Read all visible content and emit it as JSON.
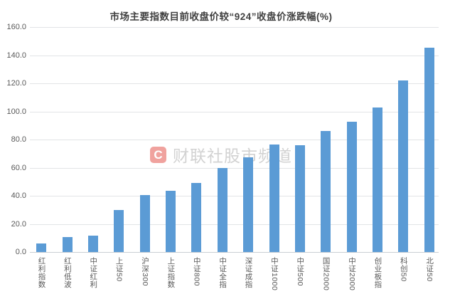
{
  "chart_data": {
    "type": "bar",
    "title": "市场主要指数目前收盘价较“924”收盘价涨跌幅(%)",
    "categories": [
      "红利指数",
      "红利低波",
      "中证红利",
      "上证50",
      "沪深300",
      "上证指数",
      "中证800",
      "中证全指",
      "深证成指",
      "中证1000",
      "中证500",
      "国证2000",
      "中证2000",
      "创业板指",
      "科创50",
      "北证50"
    ],
    "values": [
      6.1,
      10.7,
      11.8,
      30.1,
      40.4,
      43.4,
      49.0,
      59.7,
      67.3,
      76.4,
      75.8,
      85.9,
      92.9,
      102.7,
      122.2,
      145.4
    ],
    "xlabel": "",
    "ylabel": "",
    "ylim": [
      0,
      160
    ],
    "ytick_step": 20,
    "yticks": [
      "0.0",
      "20.0",
      "40.0",
      "60.0",
      "80.0",
      "100.0",
      "120.0",
      "140.0",
      "160.0"
    ],
    "grid": true,
    "legend": false,
    "x_label_orientation": "vertical-cjk-upright"
  },
  "watermark": {
    "logo_letter": "C",
    "text": "财联社股市频道"
  },
  "colors": {
    "background": "#ffffff",
    "title": "#404040",
    "axis_label": "#595959",
    "gridline": "#e2e4e6",
    "axis_line": "#c9ced4",
    "bar": "#5b9bd5",
    "watermark_logo": "#e4574f",
    "watermark_text": "#cbcbcb"
  }
}
